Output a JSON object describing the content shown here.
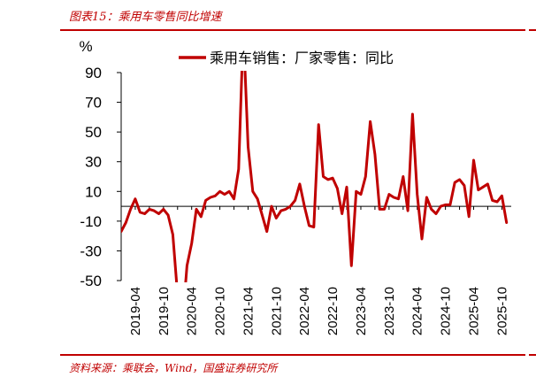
{
  "figure": {
    "title": "图表15：乘用车零售同比增速",
    "source": "资料来源：乘联会，Wind，国盛证券研究所"
  },
  "colors": {
    "accent": "#c00000",
    "series_line": "#c00000",
    "axis": "#000000"
  },
  "chart_data": {
    "type": "line",
    "ylabel": "%",
    "ylim": [
      -50,
      90
    ],
    "yticks": [
      -50,
      -30,
      -10,
      10,
      30,
      50,
      70,
      90
    ],
    "x_tick_labels": [
      "2019-04",
      "2019-10",
      "2020-04",
      "2020-10",
      "2021-04",
      "2021-10",
      "2022-04",
      "2022-10",
      "2023-04",
      "2023-10",
      "2024-04",
      "2024-10",
      "2025-04",
      "2025-10"
    ],
    "legend_position": "top",
    "grid": false,
    "series": [
      {
        "name": "乘用车销售：厂家零售：同比",
        "x": [
          "2019-01",
          "2019-02",
          "2019-03",
          "2019-04",
          "2019-05",
          "2019-06",
          "2019-07",
          "2019-08",
          "2019-09",
          "2019-10",
          "2019-11",
          "2019-12",
          "2020-01",
          "2020-02",
          "2020-03",
          "2020-04",
          "2020-05",
          "2020-06",
          "2020-07",
          "2020-08",
          "2020-09",
          "2020-10",
          "2020-11",
          "2020-12",
          "2021-01",
          "2021-02",
          "2021-03",
          "2021-04",
          "2021-05",
          "2021-06",
          "2021-07",
          "2021-08",
          "2021-09",
          "2021-10",
          "2021-11",
          "2021-12",
          "2022-01",
          "2022-02",
          "2022-03",
          "2022-04",
          "2022-05",
          "2022-06",
          "2022-07",
          "2022-08",
          "2022-09",
          "2022-10",
          "2022-11",
          "2022-12",
          "2023-01",
          "2023-02",
          "2023-03",
          "2023-04",
          "2023-05",
          "2023-06",
          "2023-07",
          "2023-08",
          "2023-09",
          "2023-10",
          "2023-11",
          "2023-12",
          "2024-01",
          "2024-02",
          "2024-03",
          "2024-04",
          "2024-05",
          "2024-06",
          "2024-07",
          "2024-08",
          "2024-09",
          "2024-10",
          "2024-11",
          "2024-12",
          "2025-01",
          "2025-02",
          "2025-03",
          "2025-04",
          "2025-05",
          "2025-06",
          "2025-07",
          "2025-08",
          "2025-09",
          "2025-10",
          "2025-11"
        ],
        "values": [
          -17,
          -11,
          -2,
          5,
          -4,
          -5,
          -2,
          -3,
          -5,
          -2,
          -6,
          -19,
          -60,
          -80,
          -40,
          -25,
          -2,
          -7,
          4,
          6,
          7,
          10,
          8,
          10,
          5,
          25,
          120,
          40,
          10,
          5,
          -6,
          -17,
          0,
          -8,
          -3,
          -2,
          0,
          4,
          15,
          0,
          -13,
          -14,
          55,
          20,
          18,
          19,
          12,
          -5,
          13,
          -40,
          10,
          8,
          20,
          57,
          35,
          -2,
          -2,
          8,
          6,
          5,
          20,
          -3,
          62,
          8,
          -22,
          6,
          -2,
          -5,
          0,
          1,
          1,
          16,
          18,
          14,
          -7,
          31,
          11,
          13,
          15,
          4,
          3,
          7,
          -11
        ]
      }
    ]
  }
}
